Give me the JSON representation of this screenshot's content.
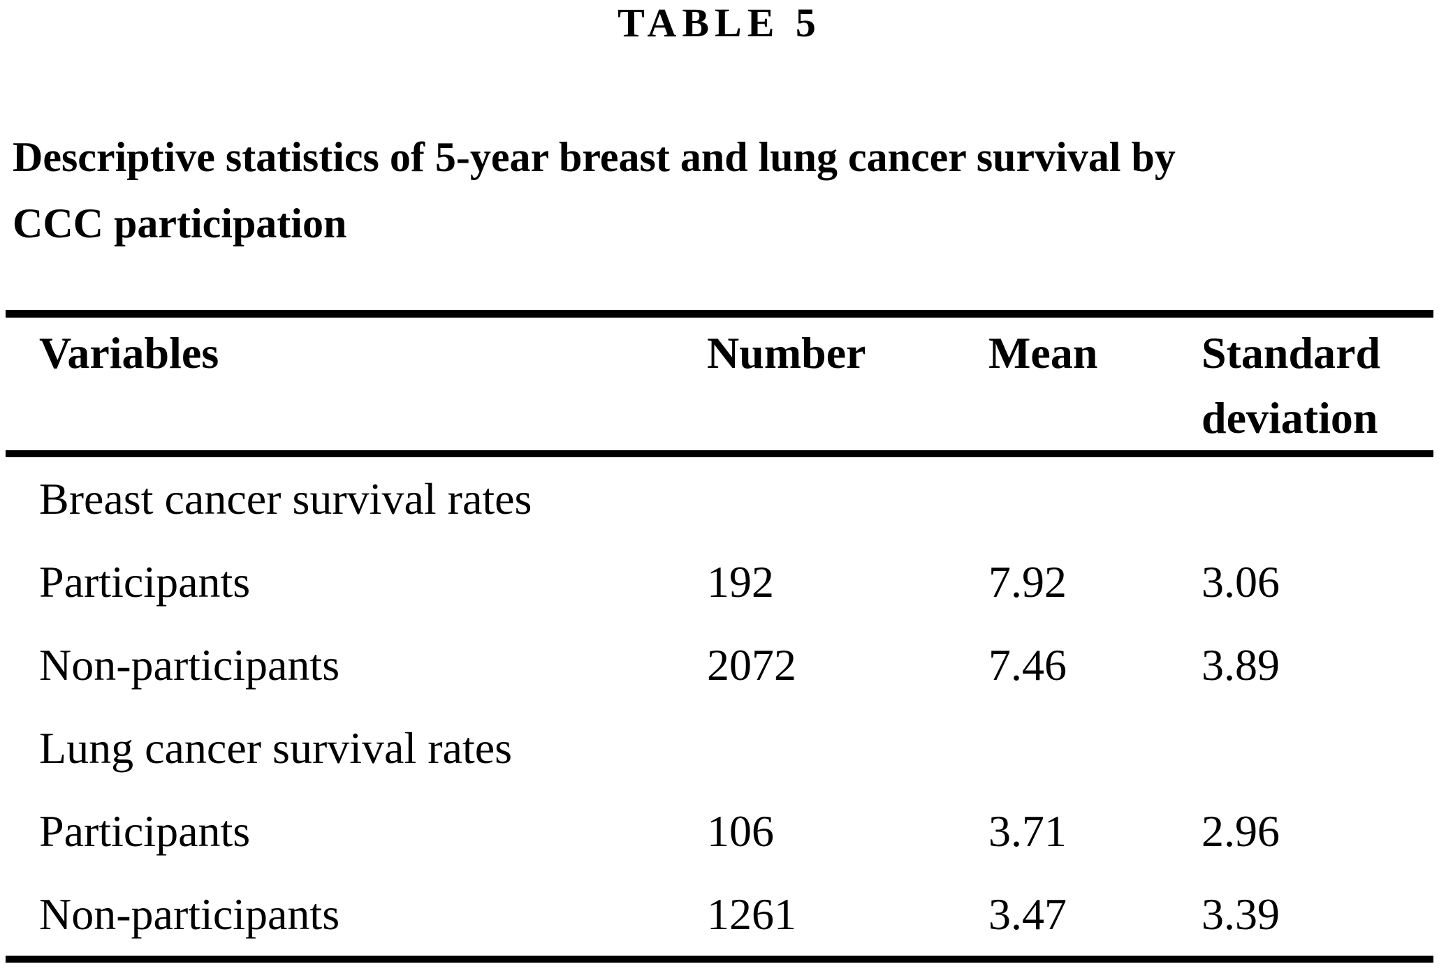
{
  "table_label": "TABLE 5",
  "title_lines": [
    "Descriptive statistics of 5-year breast and lung cancer survival by",
    "CCC participation"
  ],
  "table": {
    "header": {
      "variables": "Variables",
      "number": "Number",
      "mean": "Mean",
      "standard_deviation": "Standard deviation"
    },
    "rows": [
      {
        "label": "Breast cancer survival rates",
        "number": "",
        "mean": "",
        "sd": ""
      },
      {
        "label": "Participants",
        "number": "192",
        "mean": "7.92",
        "sd": "3.06"
      },
      {
        "label": "Non-participants",
        "number": "2072",
        "mean": "7.46",
        "sd": "3.89"
      },
      {
        "label": "Lung cancer survival rates",
        "number": "",
        "mean": "",
        "sd": ""
      },
      {
        "label": "Participants",
        "number": "106",
        "mean": "3.71",
        "sd": "2.96"
      },
      {
        "label": "Non-participants",
        "number": "1261",
        "mean": "3.47",
        "sd": "3.39"
      }
    ]
  },
  "colors": {
    "text": "#000000",
    "background": "#ffffff",
    "rule": "#000000"
  }
}
